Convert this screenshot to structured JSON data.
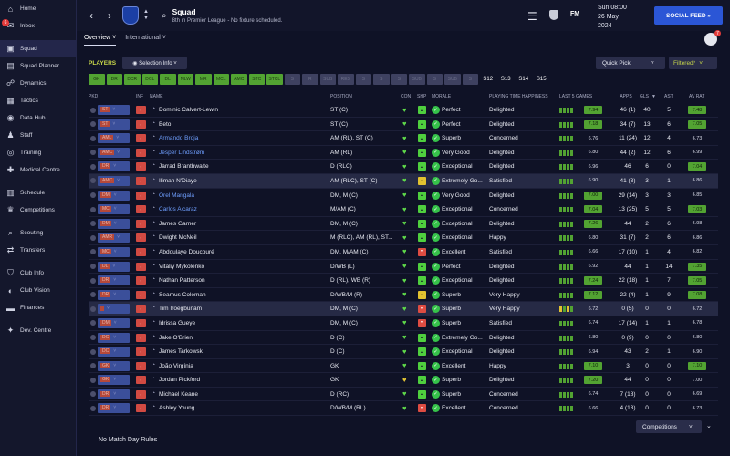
{
  "sidebar": {
    "items": [
      {
        "label": "Home",
        "icon": "home-icon",
        "glyph": "⌂"
      },
      {
        "label": "Inbox",
        "icon": "inbox-icon",
        "glyph": "✉",
        "badge": "6"
      },
      {
        "label": "Squad",
        "icon": "squad-icon",
        "glyph": "▣",
        "active": true
      },
      {
        "label": "Squad Planner",
        "icon": "squad-planner-icon",
        "glyph": "▤"
      },
      {
        "label": "Dynamics",
        "icon": "dynamics-icon",
        "glyph": "☍"
      },
      {
        "label": "Tactics",
        "icon": "tactics-icon",
        "glyph": "▦"
      },
      {
        "label": "Data Hub",
        "icon": "data-hub-icon",
        "glyph": "◉"
      },
      {
        "label": "Staff",
        "icon": "staff-icon",
        "glyph": "♟"
      },
      {
        "label": "Training",
        "icon": "training-icon",
        "glyph": "◎"
      },
      {
        "label": "Medical Centre",
        "icon": "medical-centre-icon",
        "glyph": "✚"
      },
      {
        "label": "Schedule",
        "icon": "schedule-icon",
        "glyph": "▥"
      },
      {
        "label": "Competitions",
        "icon": "competitions-icon",
        "glyph": "♛"
      },
      {
        "label": "Scouting",
        "icon": "scouting-icon",
        "glyph": "⌕"
      },
      {
        "label": "Transfers",
        "icon": "transfers-icon",
        "glyph": "⇄"
      },
      {
        "label": "Club Info",
        "icon": "club-info-icon",
        "glyph": "⛉"
      },
      {
        "label": "Club Vision",
        "icon": "club-vision-icon",
        "glyph": "◐"
      },
      {
        "label": "Finances",
        "icon": "finances-icon",
        "glyph": "▬"
      },
      {
        "label": "Dev. Centre",
        "icon": "dev-centre-icon",
        "glyph": "✦"
      }
    ]
  },
  "header": {
    "title": "Squad",
    "subtitle": "8th in Premier League - No fixture scheduled.",
    "date_line1": "Sun 08:00",
    "date_line2": "26 May",
    "date_line3": "2024",
    "fm_label": "FM",
    "social_feed": "SOCIAL FEED »"
  },
  "tabs": [
    {
      "label": "Overview ˅",
      "active": true
    },
    {
      "label": "International ˅",
      "active": false
    }
  ],
  "avatar_badge": "7",
  "filters": {
    "players_label": "PLAYERS",
    "selection_info": "◉ Selection Info ˅",
    "quick_pick": "Quick Pick",
    "filtered": "Filtered*",
    "positions": [
      {
        "label": "GK",
        "on": true
      },
      {
        "label": "DR",
        "on": true
      },
      {
        "label": "DCR",
        "on": true
      },
      {
        "label": "DCL",
        "on": true
      },
      {
        "label": "DL",
        "on": true
      },
      {
        "label": "MLW",
        "on": true
      },
      {
        "label": "MR",
        "on": true
      },
      {
        "label": "MCL",
        "on": true
      },
      {
        "label": "AMC",
        "on": true
      },
      {
        "label": "STC",
        "on": true
      },
      {
        "label": "STCL",
        "on": true
      },
      {
        "label": "S",
        "on": false
      },
      {
        "label": "R",
        "on": false
      },
      {
        "label": "SUB",
        "on": false
      },
      {
        "label": "RES",
        "on": false
      },
      {
        "label": "S",
        "on": false
      },
      {
        "label": "S",
        "on": false
      },
      {
        "label": "S",
        "on": false
      },
      {
        "label": "SUB",
        "on": false
      },
      {
        "label": "S",
        "on": false
      },
      {
        "label": "SUB",
        "on": false
      },
      {
        "label": "S",
        "on": false
      }
    ],
    "age_groups": [
      "S12",
      "S13",
      "S14",
      "S15"
    ]
  },
  "table": {
    "headers": {
      "pkd": "PKD",
      "inf": "INF",
      "name": "NAME",
      "position": "POSITION",
      "con": "CON",
      "shp": "SHP",
      "morale": "MORALE",
      "pth": "PLAYING TIME HAPPINESS",
      "last5": "LAST 5 GAMES",
      "apps": "APPS",
      "gls": "GLS",
      "ast": "AST",
      "avrat": "AV RAT"
    },
    "rows": [
      {
        "pick": "ST",
        "name": "Dominic Calvert-Lewin",
        "link": false,
        "position": "ST (C)",
        "con": "green",
        "shp": "green",
        "morale": "Perfect",
        "pth": "Delighted",
        "form": "gggg",
        "last5": "7.94",
        "l5hi": true,
        "apps": "46 (1)",
        "gls": "40",
        "ast": "5",
        "avrat": "7.48",
        "avhi": true
      },
      {
        "pick": "ST",
        "name": "Beto",
        "link": false,
        "position": "ST (C)",
        "con": "green",
        "shp": "green",
        "morale": "Perfect",
        "pth": "Delighted",
        "form": "gggg",
        "last5": "7.18",
        "l5hi": true,
        "apps": "34 (7)",
        "gls": "13",
        "ast": "6",
        "avrat": "7.05",
        "avhi": true
      },
      {
        "pick": "AML",
        "name": "Armando Broja",
        "link": true,
        "position": "AM (RL), ST (C)",
        "con": "green",
        "shp": "green",
        "morale": "Superb",
        "pth": "Concerned",
        "form": "gggg",
        "last5": "6.76",
        "l5hi": false,
        "apps": "11 (24)",
        "gls": "12",
        "ast": "4",
        "avrat": "6.73",
        "avhi": false
      },
      {
        "pick": "AMC",
        "name": "Jesper Lindstrøm",
        "link": true,
        "position": "AM (RL)",
        "con": "green",
        "shp": "green",
        "morale": "Very Good",
        "pth": "Delighted",
        "form": "gggg",
        "last5": "6.80",
        "l5hi": false,
        "apps": "44 (2)",
        "gls": "12",
        "ast": "6",
        "avrat": "6.99",
        "avhi": false
      },
      {
        "pick": "DR",
        "name": "Jarrad Branthwaite",
        "link": false,
        "position": "D (RLC)",
        "con": "green",
        "shp": "green",
        "morale": "Exceptional",
        "pth": "Delighted",
        "form": "gggg",
        "last5": "6.96",
        "l5hi": false,
        "apps": "46",
        "gls": "6",
        "ast": "0",
        "avrat": "7.04",
        "avhi": true
      },
      {
        "pick": "AMC",
        "name": "Iliman N'Diaye",
        "link": false,
        "position": "AM (RLC), ST (C)",
        "con": "green",
        "shp": "yellow",
        "morale": "Extremely Go...",
        "pth": "Satisfied",
        "form": "gggg",
        "last5": "6.90",
        "l5hi": false,
        "apps": "41 (3)",
        "gls": "3",
        "ast": "1",
        "avrat": "6.86",
        "avhi": false,
        "highlight": true
      },
      {
        "pick": "DM",
        "name": "Orel Mangala",
        "link": true,
        "position": "DM, M (C)",
        "con": "green",
        "shp": "green",
        "morale": "Very Good",
        "pth": "Delighted",
        "form": "gggg",
        "last5": "7.00",
        "l5hi": true,
        "apps": "29 (14)",
        "gls": "3",
        "ast": "3",
        "avrat": "6.85",
        "avhi": false
      },
      {
        "pick": "MC",
        "name": "Carlos Alcaraz",
        "link": true,
        "position": "M/AM (C)",
        "con": "green",
        "shp": "green",
        "morale": "Exceptional",
        "pth": "Concerned",
        "form": "gggg",
        "last5": "7.04",
        "l5hi": true,
        "apps": "13 (25)",
        "gls": "5",
        "ast": "5",
        "avrat": "7.03",
        "avhi": true
      },
      {
        "pick": "DM",
        "name": "James Garner",
        "link": false,
        "position": "DM, M (C)",
        "con": "green",
        "shp": "green",
        "morale": "Exceptional",
        "pth": "Delighted",
        "form": "gggg",
        "last5": "7.26",
        "l5hi": true,
        "apps": "44",
        "gls": "2",
        "ast": "6",
        "avrat": "6.98",
        "avhi": false
      },
      {
        "pick": "AMR",
        "name": "Dwight McNeil",
        "link": false,
        "position": "M (RLC), AM (RL), ST...",
        "con": "green",
        "shp": "green",
        "morale": "Exceptional",
        "pth": "Happy",
        "form": "gggg",
        "last5": "6.80",
        "l5hi": false,
        "apps": "31 (7)",
        "gls": "2",
        "ast": "6",
        "avrat": "6.86",
        "avhi": false
      },
      {
        "pick": "MC",
        "name": "Abdoulaye Doucouré",
        "link": false,
        "position": "DM, M/AM (C)",
        "con": "green",
        "shp": "red",
        "morale": "Excellent",
        "pth": "Satisfied",
        "form": "gggg",
        "last5": "6.66",
        "l5hi": false,
        "apps": "17 (10)",
        "gls": "1",
        "ast": "4",
        "avrat": "6.82",
        "avhi": false
      },
      {
        "pick": "DL",
        "name": "Vitaliy Mykolenko",
        "link": false,
        "position": "D/WB (L)",
        "con": "green",
        "shp": "green",
        "morale": "Perfect",
        "pth": "Delighted",
        "form": "gggg",
        "last5": "6.92",
        "l5hi": false,
        "apps": "44",
        "gls": "1",
        "ast": "14",
        "avrat": "7.35",
        "avhi": true
      },
      {
        "pick": "DR",
        "name": "Nathan Patterson",
        "link": false,
        "position": "D (RL), WB (R)",
        "con": "green",
        "shp": "green",
        "morale": "Exceptional",
        "pth": "Delighted",
        "form": "gggg",
        "last5": "7.24",
        "l5hi": true,
        "apps": "22 (18)",
        "gls": "1",
        "ast": "7",
        "avrat": "7.05",
        "avhi": true
      },
      {
        "pick": "DR",
        "name": "Seamus Coleman",
        "link": false,
        "position": "D/WB/M (R)",
        "con": "green",
        "shp": "yellow",
        "morale": "Superb",
        "pth": "Very Happy",
        "form": "gggg",
        "last5": "7.12",
        "l5hi": true,
        "apps": "22 (4)",
        "gls": "1",
        "ast": "9",
        "avrat": "7.08",
        "avhi": true
      },
      {
        "pick": "",
        "name": "Tim Iroegbunam",
        "link": false,
        "position": "DM, M (C)",
        "con": "green",
        "shp": "red",
        "morale": "Superb",
        "pth": "Very Happy",
        "form": "ogog",
        "last5": "6.72",
        "l5hi": false,
        "apps": "0 (5)",
        "gls": "0",
        "ast": "0",
        "avrat": "6.72",
        "avhi": false,
        "highlight": true
      },
      {
        "pick": "DM",
        "name": "Idrissa Gueye",
        "link": false,
        "position": "DM, M (C)",
        "con": "green",
        "shp": "red",
        "morale": "Superb",
        "pth": "Satisfied",
        "form": "gggg",
        "last5": "6.74",
        "l5hi": false,
        "apps": "17 (14)",
        "gls": "1",
        "ast": "1",
        "avrat": "6.78",
        "avhi": false
      },
      {
        "pick": "DC",
        "name": "Jake O'Brien",
        "link": false,
        "position": "D (C)",
        "con": "green",
        "shp": "green",
        "morale": "Extremely Go...",
        "pth": "Delighted",
        "form": "gggg",
        "last5": "6.80",
        "l5hi": false,
        "apps": "0 (9)",
        "gls": "0",
        "ast": "0",
        "avrat": "6.80",
        "avhi": false
      },
      {
        "pick": "DC",
        "name": "James Tarkowski",
        "link": false,
        "position": "D (C)",
        "con": "green",
        "shp": "green",
        "morale": "Exceptional",
        "pth": "Delighted",
        "form": "gggg",
        "last5": "6.94",
        "l5hi": false,
        "apps": "43",
        "gls": "2",
        "ast": "1",
        "avrat": "6.90",
        "avhi": false
      },
      {
        "pick": "GK",
        "name": "João Virgínia",
        "link": false,
        "position": "GK",
        "con": "green",
        "shp": "green",
        "morale": "Excellent",
        "pth": "Happy",
        "form": "gggg",
        "last5": "7.10",
        "l5hi": true,
        "apps": "3",
        "gls": "0",
        "ast": "0",
        "avrat": "7.10",
        "avhi": true
      },
      {
        "pick": "GK",
        "name": "Jordan Pickford",
        "link": false,
        "position": "GK",
        "con": "yellow",
        "shp": "green",
        "morale": "Superb",
        "pth": "Delighted",
        "form": "gggg",
        "last5": "7.20",
        "l5hi": true,
        "apps": "44",
        "gls": "0",
        "ast": "0",
        "avrat": "7.00",
        "avhi": false
      },
      {
        "pick": "DR",
        "name": "Michael Keane",
        "link": false,
        "position": "D (RC)",
        "con": "green",
        "shp": "green",
        "morale": "Superb",
        "pth": "Concerned",
        "form": "gggg",
        "last5": "6.74",
        "l5hi": false,
        "apps": "7 (18)",
        "gls": "0",
        "ast": "0",
        "avrat": "6.69",
        "avhi": false
      },
      {
        "pick": "DR",
        "name": "Ashley Young",
        "link": false,
        "position": "D/WB/M (RL)",
        "con": "green",
        "shp": "red",
        "morale": "Excellent",
        "pth": "Concerned",
        "form": "gggg",
        "last5": "6.66",
        "l5hi": false,
        "apps": "4 (13)",
        "gls": "0",
        "ast": "0",
        "avrat": "6.73",
        "avhi": false
      }
    ]
  },
  "footer": {
    "match_rules": "No Match Day Rules",
    "competitions": "Competitions"
  },
  "colors": {
    "accent_green": "#52a332",
    "accent_yellow": "#c8d74a",
    "social_blue": "#2b56d6",
    "panel": "#0f1226"
  }
}
